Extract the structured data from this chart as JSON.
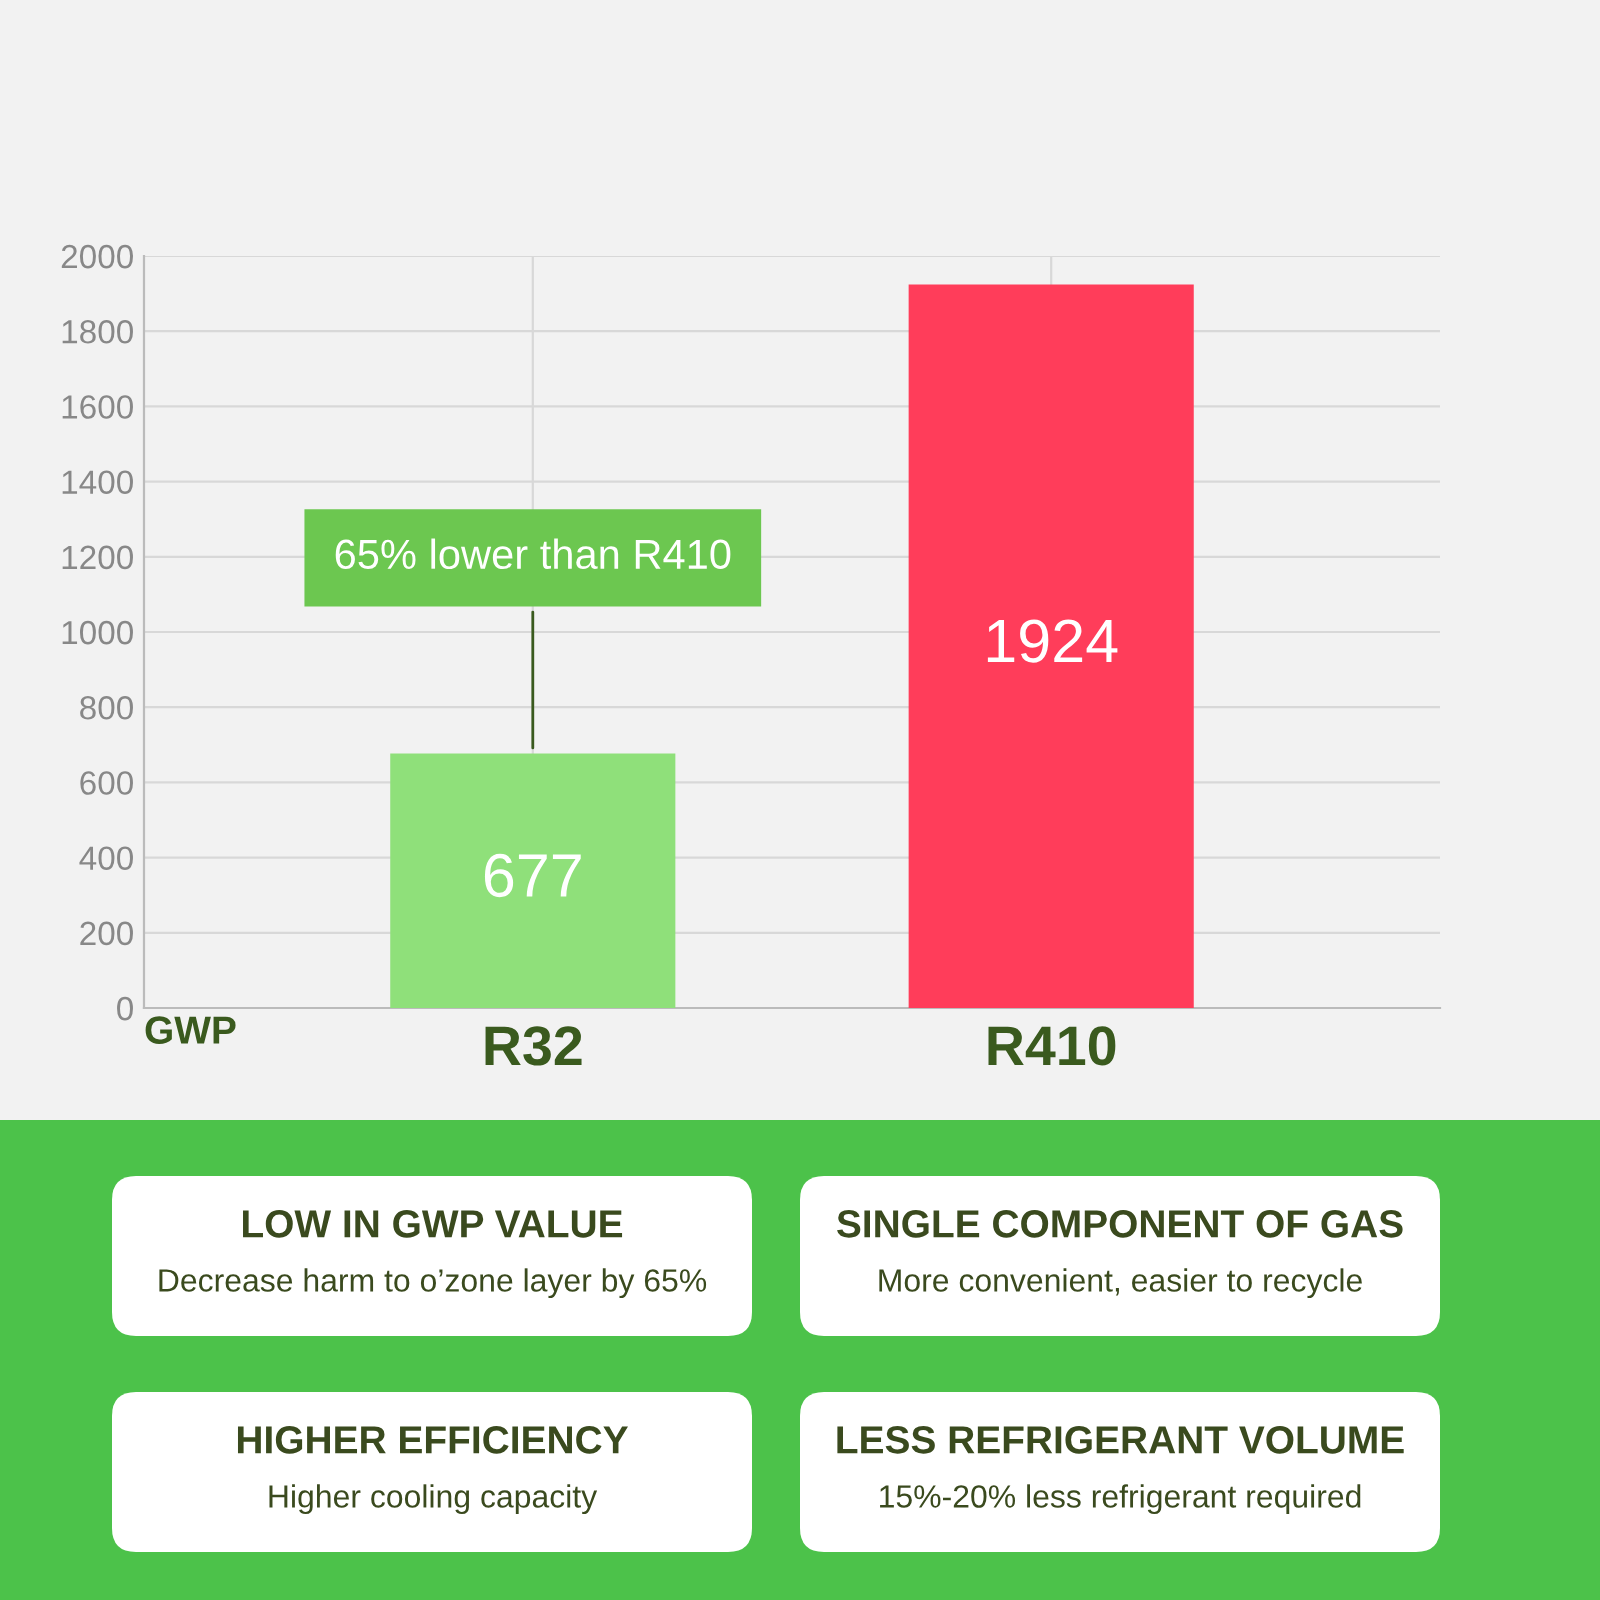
{
  "chart_data": {
    "type": "bar",
    "xlabel": "GWP",
    "categories": [
      "R32",
      "R410"
    ],
    "values": [
      677,
      1924
    ],
    "colors": [
      "#8fe07a",
      "#ff3d5a"
    ],
    "data_labels": true,
    "ylim": [
      0,
      2000
    ],
    "yticks": [
      0,
      200,
      400,
      600,
      800,
      1000,
      1200,
      1400,
      1600,
      1800,
      2000
    ],
    "grid": true,
    "annotations": [
      {
        "text": "65% lower than R410",
        "x": "R32",
        "y": 677
      },
      "LOW IN GWP VALUE",
      "Decrease harm to o’zone layer by 65%",
      "SINGLE COMPONENT OF GAS",
      "More convenient, easier to recycle",
      "HIGHER EFFICIENCY",
      "Higher cooling capacity",
      "LESS REFRIGERANT VOLUME",
      "15%-20% less refrigerant required"
    ]
  }
}
